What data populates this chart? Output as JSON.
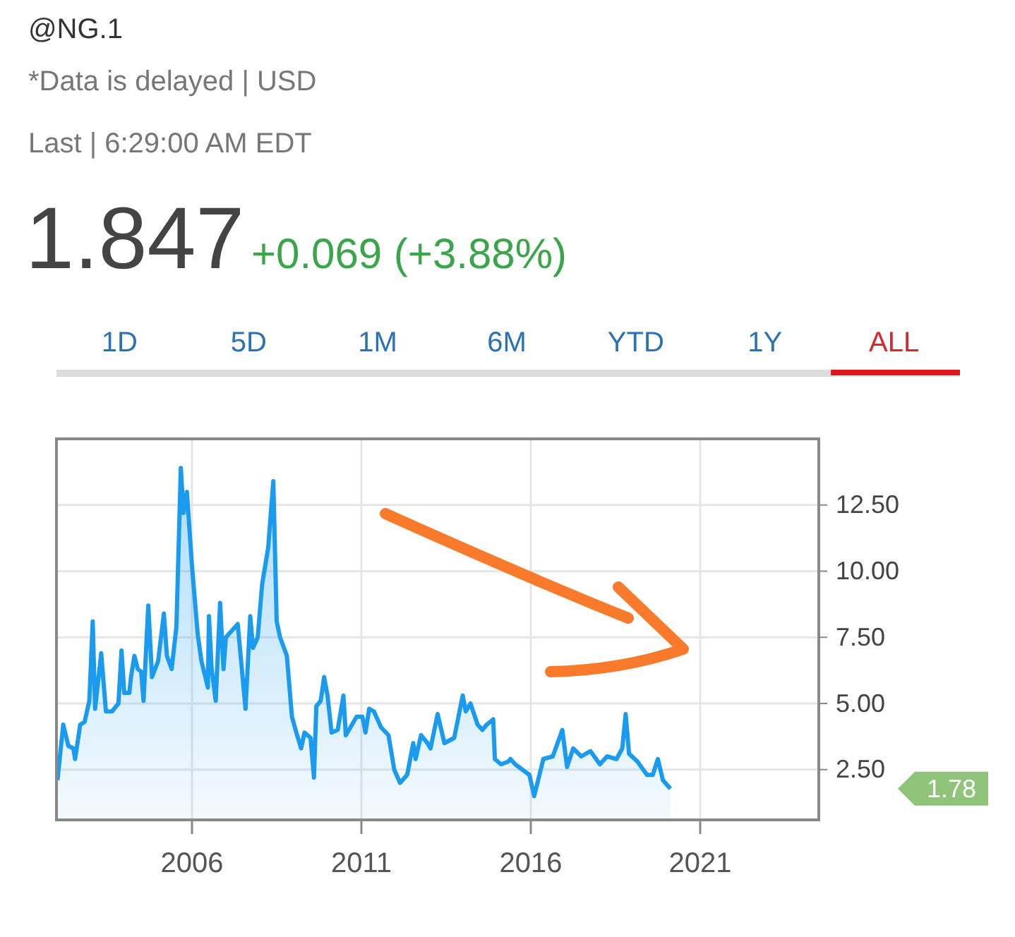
{
  "chart_data": {
    "type": "area",
    "title": "@NG.1",
    "subtitle": "*Data is delayed | USD",
    "annotations": [
      "Last | 6:29:00 AM EDT",
      "1.847",
      "+0.069 (+3.88%)",
      "1D",
      "5D",
      "1M",
      "6M",
      "YTD",
      "1Y",
      "ALL",
      "1.78"
    ],
    "x": [
      2002.03,
      2002.2,
      2002.35,
      2002.5,
      2002.55,
      2002.7,
      2002.83,
      2002.97,
      2003.07,
      2003.14,
      2003.32,
      2003.46,
      2003.64,
      2003.83,
      2003.92,
      2004.0,
      2004.15,
      2004.2,
      2004.3,
      2004.4,
      2004.5,
      2004.57,
      2004.71,
      2004.82,
      2005.0,
      2005.17,
      2005.26,
      2005.4,
      2005.54,
      2005.67,
      2005.75,
      2005.85,
      2006.0,
      2006.17,
      2006.28,
      2006.47,
      2006.5,
      2006.58,
      2006.7,
      2006.83,
      2006.93,
      2007.0,
      2007.14,
      2007.35,
      2007.58,
      2007.72,
      2007.8,
      2007.94,
      2008.07,
      2008.25,
      2008.4,
      2008.5,
      2008.6,
      2008.8,
      2008.95,
      2009.08,
      2009.22,
      2009.32,
      2009.5,
      2009.6,
      2009.67,
      2009.8,
      2009.9,
      2010.0,
      2010.12,
      2010.3,
      2010.47,
      2010.54,
      2010.86,
      2011.03,
      2011.12,
      2011.23,
      2011.37,
      2011.58,
      2011.8,
      2011.97,
      2012.14,
      2012.35,
      2012.53,
      2012.6,
      2012.76,
      2012.95,
      2013.04,
      2013.25,
      2013.45,
      2013.74,
      2013.99,
      2014.08,
      2014.22,
      2014.43,
      2014.57,
      2014.7,
      2014.89,
      2014.94,
      2015.12,
      2015.33,
      2015.4,
      2015.54,
      2015.75,
      2015.96,
      2016.1,
      2016.37,
      2016.65,
      2016.93,
      2017.07,
      2017.25,
      2017.49,
      2017.76,
      2018.04,
      2018.25,
      2018.53,
      2018.7,
      2018.8,
      2018.9,
      2019.15,
      2019.43,
      2019.6,
      2019.75,
      2019.9,
      2020.12
    ],
    "series": [
      {
        "color": "#1a9bf0",
        "values": [
          2.1,
          4.2,
          3.4,
          3.3,
          2.9,
          4.2,
          4.3,
          5.1,
          8.1,
          4.8,
          6.9,
          4.7,
          4.7,
          5.0,
          7.0,
          5.4,
          5.4,
          6.0,
          6.8,
          6.3,
          6.2,
          5.1,
          8.7,
          6.0,
          6.6,
          8.4,
          6.8,
          6.3,
          7.9,
          13.9,
          12.2,
          13.0,
          10.2,
          7.6,
          6.6,
          5.6,
          8.3,
          6.3,
          5.1,
          8.8,
          6.3,
          7.5,
          7.7,
          8.0,
          4.8,
          8.3,
          7.1,
          7.5,
          9.5,
          10.9,
          13.4,
          8.1,
          7.5,
          6.8,
          4.5,
          3.9,
          3.3,
          3.9,
          3.7,
          2.2,
          4.9,
          5.1,
          6.0,
          5.3,
          3.9,
          4.0,
          5.3,
          3.8,
          4.5,
          4.5,
          3.9,
          4.8,
          4.7,
          4.1,
          3.8,
          2.5,
          2.0,
          2.3,
          3.5,
          2.9,
          3.8,
          3.5,
          3.3,
          4.6,
          3.5,
          3.7,
          5.3,
          4.7,
          5.0,
          4.2,
          4.0,
          4.2,
          4.4,
          2.9,
          2.7,
          2.8,
          2.9,
          2.7,
          2.5,
          2.3,
          1.5,
          2.9,
          3.0,
          4.0,
          2.6,
          3.3,
          3.0,
          3.2,
          2.7,
          3.0,
          2.9,
          3.3,
          4.6,
          3.1,
          2.8,
          2.3,
          2.3,
          2.9,
          2.1,
          1.78
        ]
      }
    ],
    "xlim": [
      2002,
      2024.5
    ],
    "xticks": [
      2006,
      2011,
      2016,
      2021
    ],
    "ylim": [
      0.6,
      15
    ],
    "yticks": [
      {
        "value": 2.5,
        "label": "2.50"
      },
      {
        "value": 5,
        "label": "5.00"
      },
      {
        "value": 7.5,
        "label": "7.50"
      },
      {
        "value": 10,
        "label": "10.00"
      },
      {
        "value": 12.5,
        "label": "12.50"
      }
    ],
    "grid": true,
    "marker": "none",
    "line_style": "solid"
  }
}
